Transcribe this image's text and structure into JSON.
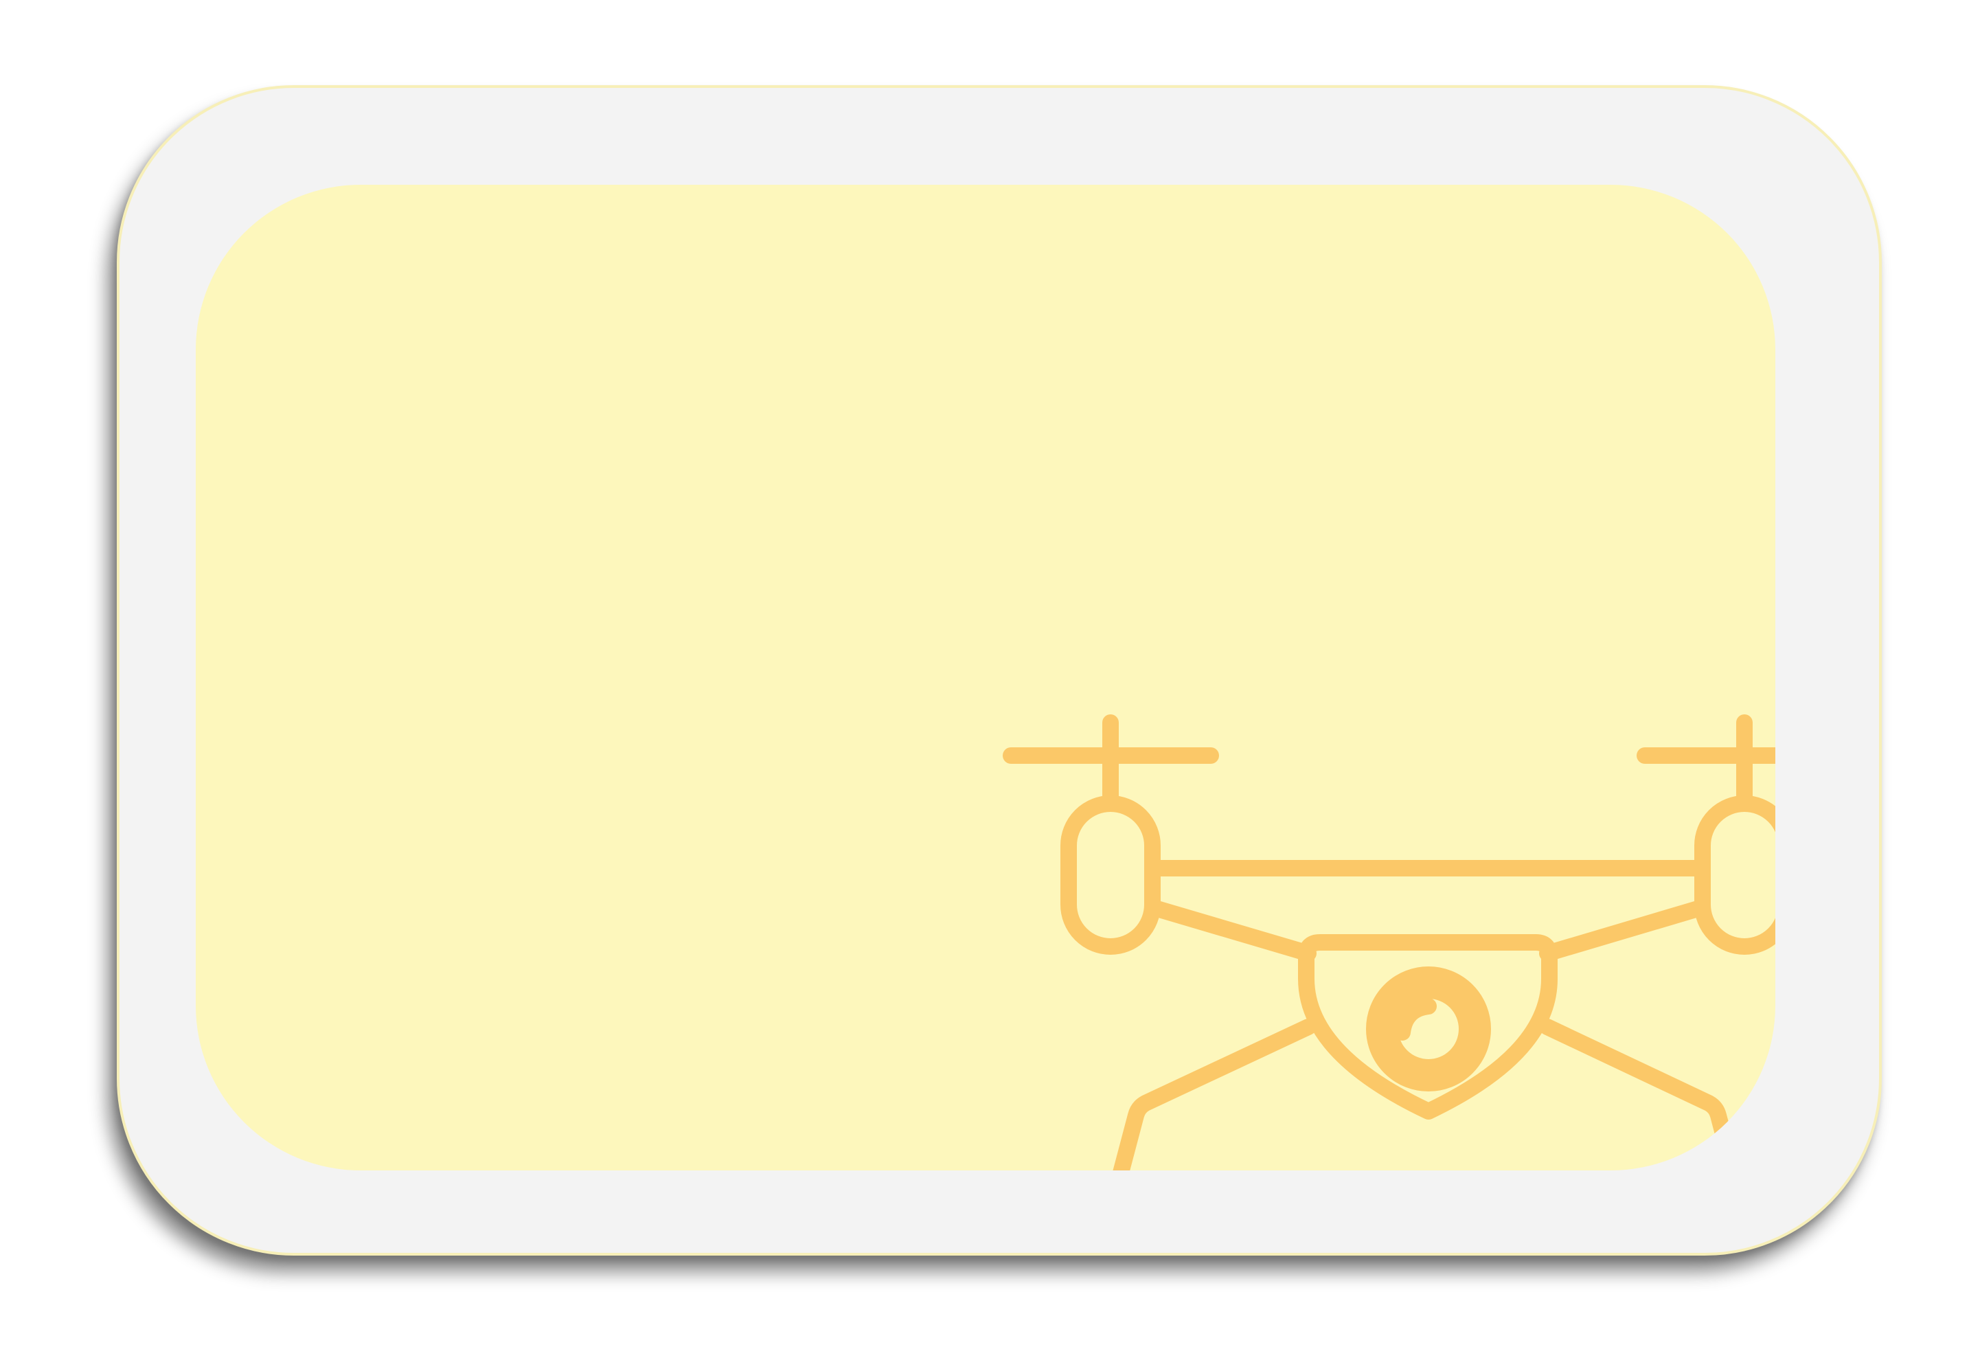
{
  "colors": {
    "card_background": "#f3f3f3",
    "card_border": "#f7efb8",
    "panel_background": "#fdf7bc",
    "icon_stroke": "#fbc868"
  },
  "icon": "drone-icon"
}
